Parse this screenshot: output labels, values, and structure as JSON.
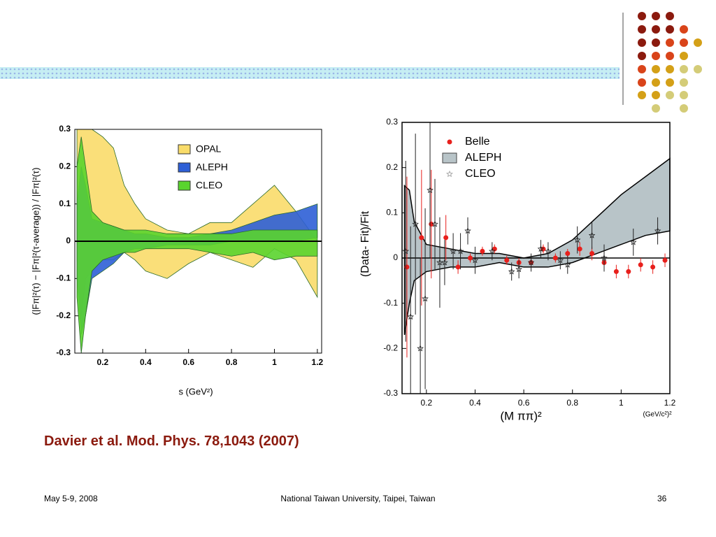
{
  "chart_data": [
    {
      "type": "band",
      "ylabel": "(|Fπ|²(τ) − |Fπ|²(τ-average)) / |Fπ|²(τ)",
      "xlabel": "s   (GeV²)",
      "xlim": [
        0.07,
        1.22
      ],
      "xticks": [
        0.2,
        0.4,
        0.6,
        0.8,
        1,
        1.2
      ],
      "ylim": [
        -0.3,
        0.3
      ],
      "yticks": [
        0.3,
        0.2,
        0.1,
        0,
        -0.1,
        -0.2,
        -0.3
      ],
      "x": [
        0.08,
        0.1,
        0.12,
        0.15,
        0.2,
        0.25,
        0.3,
        0.35,
        0.4,
        0.5,
        0.6,
        0.7,
        0.8,
        0.9,
        1.0,
        1.1,
        1.2
      ],
      "series": [
        {
          "name": "OPAL",
          "color": "#f9dc6a",
          "lower": [
            -0.05,
            -0.2,
            -0.1,
            -0.08,
            -0.05,
            -0.05,
            -0.03,
            -0.05,
            -0.08,
            -0.1,
            -0.06,
            -0.03,
            -0.05,
            -0.07,
            -0.02,
            -0.05,
            -0.15
          ],
          "upper": [
            0.3,
            0.3,
            0.3,
            0.3,
            0.28,
            0.25,
            0.15,
            0.1,
            0.06,
            0.03,
            0.02,
            0.05,
            0.05,
            0.1,
            0.15,
            0.08,
            0.0
          ]
        },
        {
          "name": "ALEPH",
          "color": "#2e5fd6",
          "lower": [
            -0.1,
            -0.25,
            -0.2,
            -0.1,
            -0.08,
            -0.06,
            -0.03,
            -0.02,
            -0.02,
            -0.01,
            -0.01,
            -0.01,
            0.0,
            0.0,
            0.0,
            0.0,
            0.01
          ],
          "upper": [
            0.1,
            0.2,
            0.15,
            0.06,
            0.05,
            0.04,
            0.03,
            0.02,
            0.02,
            0.01,
            0.01,
            0.02,
            0.03,
            0.05,
            0.07,
            0.08,
            0.1
          ]
        },
        {
          "name": "CLEO",
          "color": "#5ad42e",
          "lower": [
            -0.15,
            -0.3,
            -0.2,
            -0.08,
            -0.05,
            -0.04,
            -0.03,
            -0.03,
            -0.02,
            -0.02,
            -0.02,
            -0.03,
            -0.04,
            -0.03,
            -0.05,
            -0.04,
            -0.04
          ],
          "upper": [
            0.2,
            0.28,
            0.2,
            0.08,
            0.05,
            0.04,
            0.03,
            0.03,
            0.03,
            0.02,
            0.02,
            0.02,
            0.02,
            0.03,
            0.03,
            0.03,
            0.03
          ]
        }
      ]
    },
    {
      "type": "scatter",
      "ylabel": "(Data- Fit)/Fit",
      "xlabel": "(M ππ)²",
      "xunit": "(GeV/c²)²",
      "xlim": [
        0.1,
        1.2
      ],
      "xticks": [
        0.2,
        0.4,
        0.6,
        0.8,
        1,
        1.2
      ],
      "ylim": [
        -0.3,
        0.3
      ],
      "yticks": [
        0.3,
        0.2,
        0.1,
        0,
        -0.1,
        -0.2,
        -0.3
      ],
      "band": {
        "name": "ALEPH",
        "color": "#b8c4c8",
        "x": [
          0.11,
          0.13,
          0.15,
          0.2,
          0.3,
          0.4,
          0.5,
          0.6,
          0.7,
          0.8,
          0.9,
          1.0,
          1.1,
          1.2
        ],
        "lower": [
          -0.17,
          -0.1,
          -0.05,
          -0.03,
          -0.02,
          -0.02,
          -0.01,
          -0.02,
          -0.02,
          -0.01,
          0.01,
          0.03,
          0.05,
          0.06
        ],
        "upper": [
          0.16,
          0.15,
          0.08,
          0.03,
          0.02,
          0.01,
          0.01,
          0.0,
          0.01,
          0.04,
          0.09,
          0.14,
          0.18,
          0.22
        ]
      },
      "series": [
        {
          "name": "Belle",
          "color": "#e8201c",
          "marker": "circle",
          "x": [
            0.12,
            0.18,
            0.22,
            0.28,
            0.33,
            0.38,
            0.43,
            0.48,
            0.53,
            0.58,
            0.63,
            0.68,
            0.73,
            0.78,
            0.83,
            0.88,
            0.93,
            0.98,
            1.03,
            1.08,
            1.13,
            1.18
          ],
          "values": [
            -0.02,
            0.045,
            0.075,
            0.045,
            -0.02,
            0.0,
            0.015,
            0.02,
            -0.005,
            -0.01,
            -0.01,
            0.02,
            0.0,
            0.01,
            0.02,
            0.01,
            -0.01,
            -0.03,
            -0.03,
            -0.015,
            -0.02,
            -0.005
          ],
          "errors": [
            0.2,
            0.15,
            0.12,
            0.05,
            0.015,
            0.01,
            0.01,
            0.01,
            0.01,
            0.01,
            0.01,
            0.01,
            0.01,
            0.01,
            0.015,
            0.015,
            0.015,
            0.015,
            0.015,
            0.015,
            0.015,
            0.015
          ]
        },
        {
          "name": "CLEO",
          "color": "#222222",
          "marker": "star",
          "x": [
            0.115,
            0.135,
            0.155,
            0.175,
            0.195,
            0.215,
            0.235,
            0.255,
            0.275,
            0.31,
            0.34,
            0.37,
            0.4,
            0.47,
            0.55,
            0.58,
            0.63,
            0.67,
            0.7,
            0.75,
            0.78,
            0.82,
            0.88,
            0.93,
            1.05,
            1.15
          ],
          "values": [
            0.015,
            -0.13,
            0.075,
            -0.2,
            -0.09,
            0.15,
            0.075,
            -0.01,
            -0.01,
            0.015,
            0.015,
            0.06,
            -0.005,
            0.015,
            -0.03,
            -0.025,
            -0.01,
            0.02,
            0.015,
            -0.005,
            -0.015,
            0.04,
            0.05,
            0.0,
            0.035,
            0.06
          ],
          "errors": [
            0.2,
            0.2,
            0.2,
            0.2,
            0.2,
            0.15,
            0.1,
            0.1,
            0.05,
            0.04,
            0.04,
            0.03,
            0.03,
            0.02,
            0.02,
            0.02,
            0.02,
            0.02,
            0.02,
            0.02,
            0.02,
            0.03,
            0.03,
            0.03,
            0.03,
            0.03
          ]
        }
      ]
    }
  ],
  "citation": "Davier et al. Mod. Phys. 78,1043 (2007)",
  "footer": {
    "date": "May 5-9,  2008",
    "venue": "National Taiwan University, Taipei, Taiwan",
    "page": "36"
  }
}
